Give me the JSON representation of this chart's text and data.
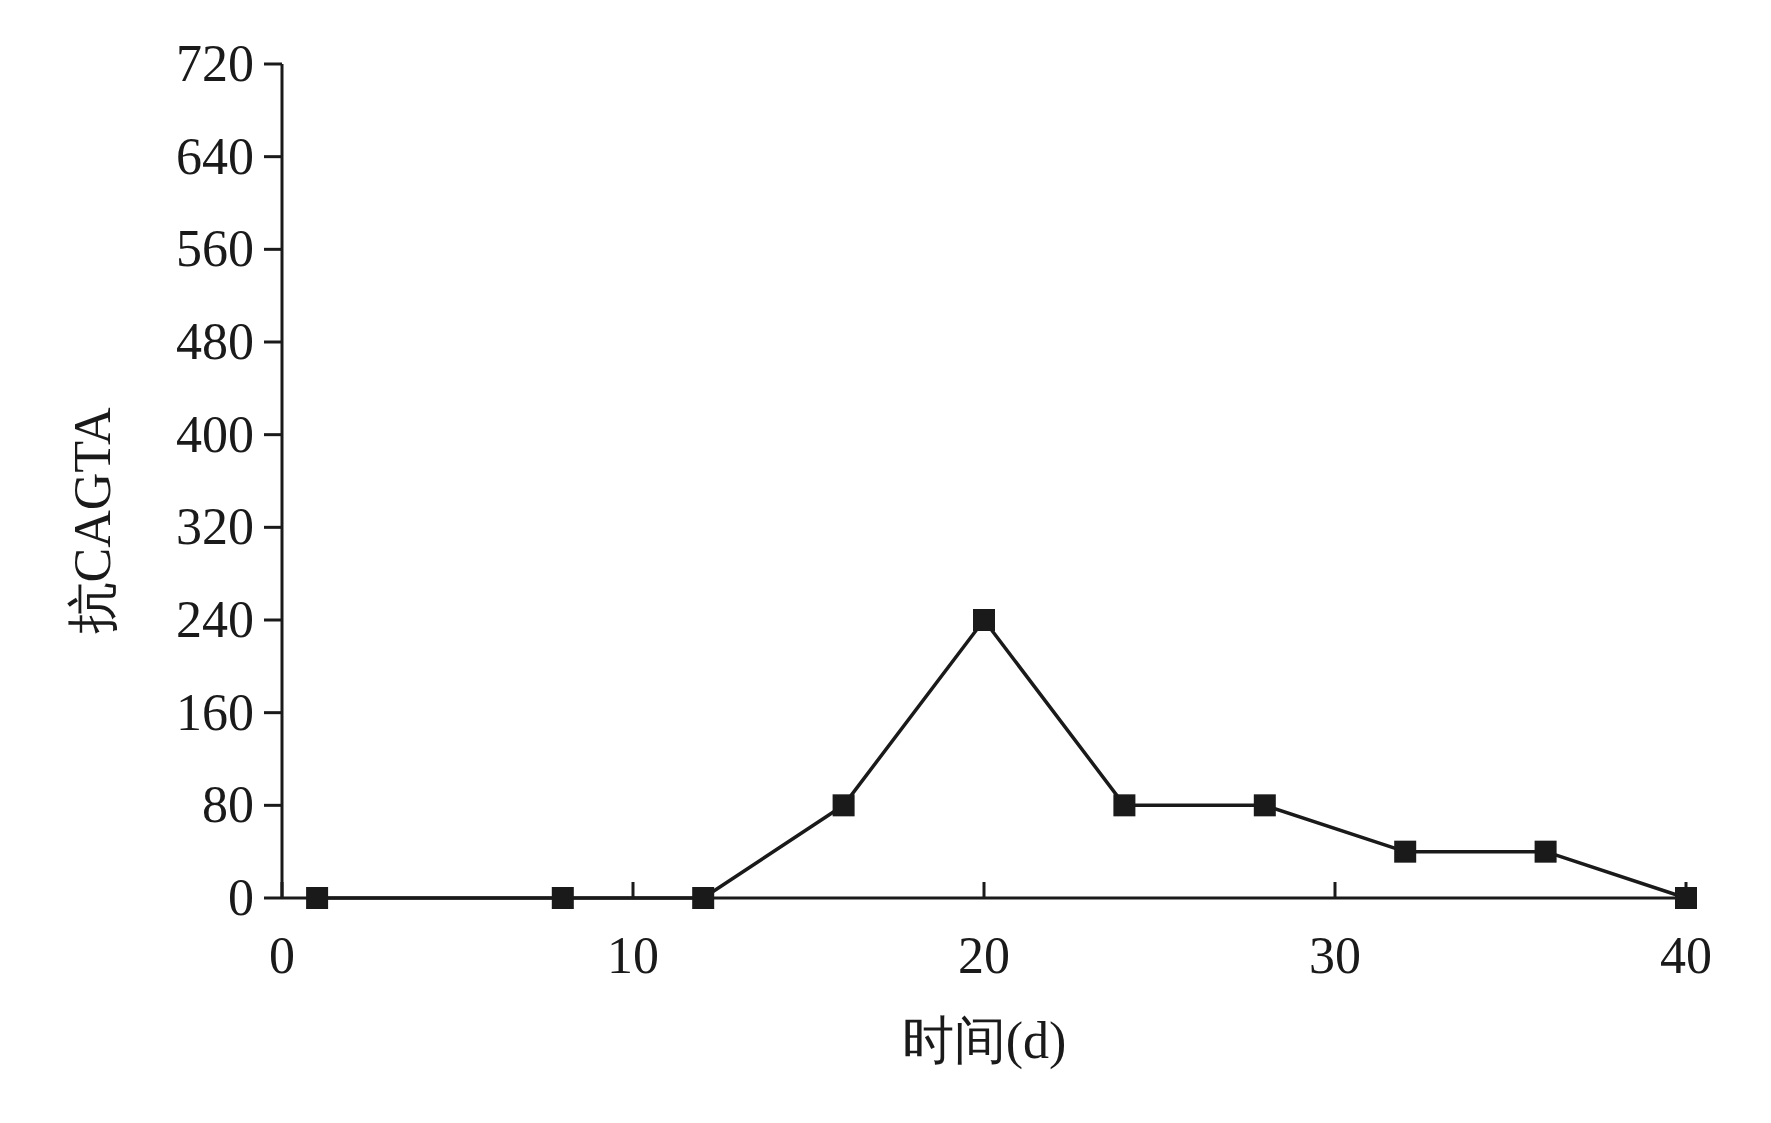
{
  "chart_data": {
    "type": "line",
    "xlabel": "时间(d)",
    "ylabel": "抗CAGTA",
    "x": [
      1,
      8,
      12,
      16,
      20,
      24,
      28,
      32,
      36,
      40
    ],
    "values": [
      0,
      0,
      0,
      80,
      240,
      80,
      80,
      40,
      40,
      0
    ],
    "color": "#1a1a1a",
    "marker": "square",
    "line_style": "solid",
    "xlim": [
      0,
      40
    ],
    "ylim": [
      0,
      720
    ],
    "xticks": [
      0,
      10,
      20,
      30,
      40
    ],
    "yticks": [
      0,
      80,
      160,
      240,
      320,
      400,
      480,
      560,
      640,
      720
    ]
  }
}
